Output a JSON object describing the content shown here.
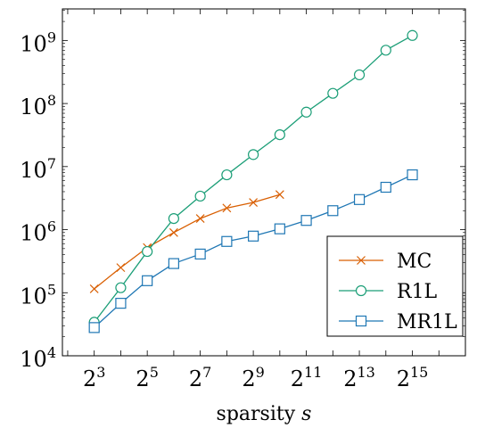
{
  "chart_data": {
    "type": "line",
    "title": "",
    "xlabel": "sparsity",
    "xlabel_var": "s",
    "ylabel": "",
    "xscale": "log2",
    "yscale": "log10",
    "xlim_exp": [
      1.8,
      17
    ],
    "ylim_exp": [
      4,
      9.5
    ],
    "x_tick_exponents": [
      3,
      5,
      7,
      9,
      11,
      13,
      15
    ],
    "x_tick_base": "2",
    "y_tick_exponents": [
      4,
      5,
      6,
      7,
      8,
      9
    ],
    "y_tick_base": "10",
    "grid": false,
    "legend_position": "bottom-right",
    "series": [
      {
        "name": "MC",
        "color": "#d95f02",
        "marker": "x",
        "x": [
          8,
          16,
          32,
          64,
          128,
          256,
          512,
          1024
        ],
        "y": [
          115000,
          250000,
          520000,
          900000,
          1500000,
          2200000,
          2700000,
          3600000
        ]
      },
      {
        "name": "R1L",
        "color": "#1b9e77",
        "marker": "circle",
        "x": [
          8,
          16,
          32,
          64,
          128,
          256,
          512,
          1024,
          2048,
          4096,
          8192,
          16384,
          32768
        ],
        "y": [
          34000,
          120000,
          450000,
          1500000,
          3400000,
          7400000,
          15500000,
          32000000,
          73000000,
          145000000,
          285000000,
          700000000,
          1200000000
        ]
      },
      {
        "name": "MR1L",
        "color": "#1f77b4",
        "marker": "square",
        "x": [
          8,
          16,
          32,
          64,
          128,
          256,
          512,
          1024,
          2048,
          4096,
          8192,
          16384,
          32768
        ],
        "y": [
          28000,
          68000,
          155000,
          290000,
          410000,
          650000,
          790000,
          1030000,
          1400000,
          2000000,
          3000000,
          4700000,
          7400000
        ]
      }
    ]
  }
}
